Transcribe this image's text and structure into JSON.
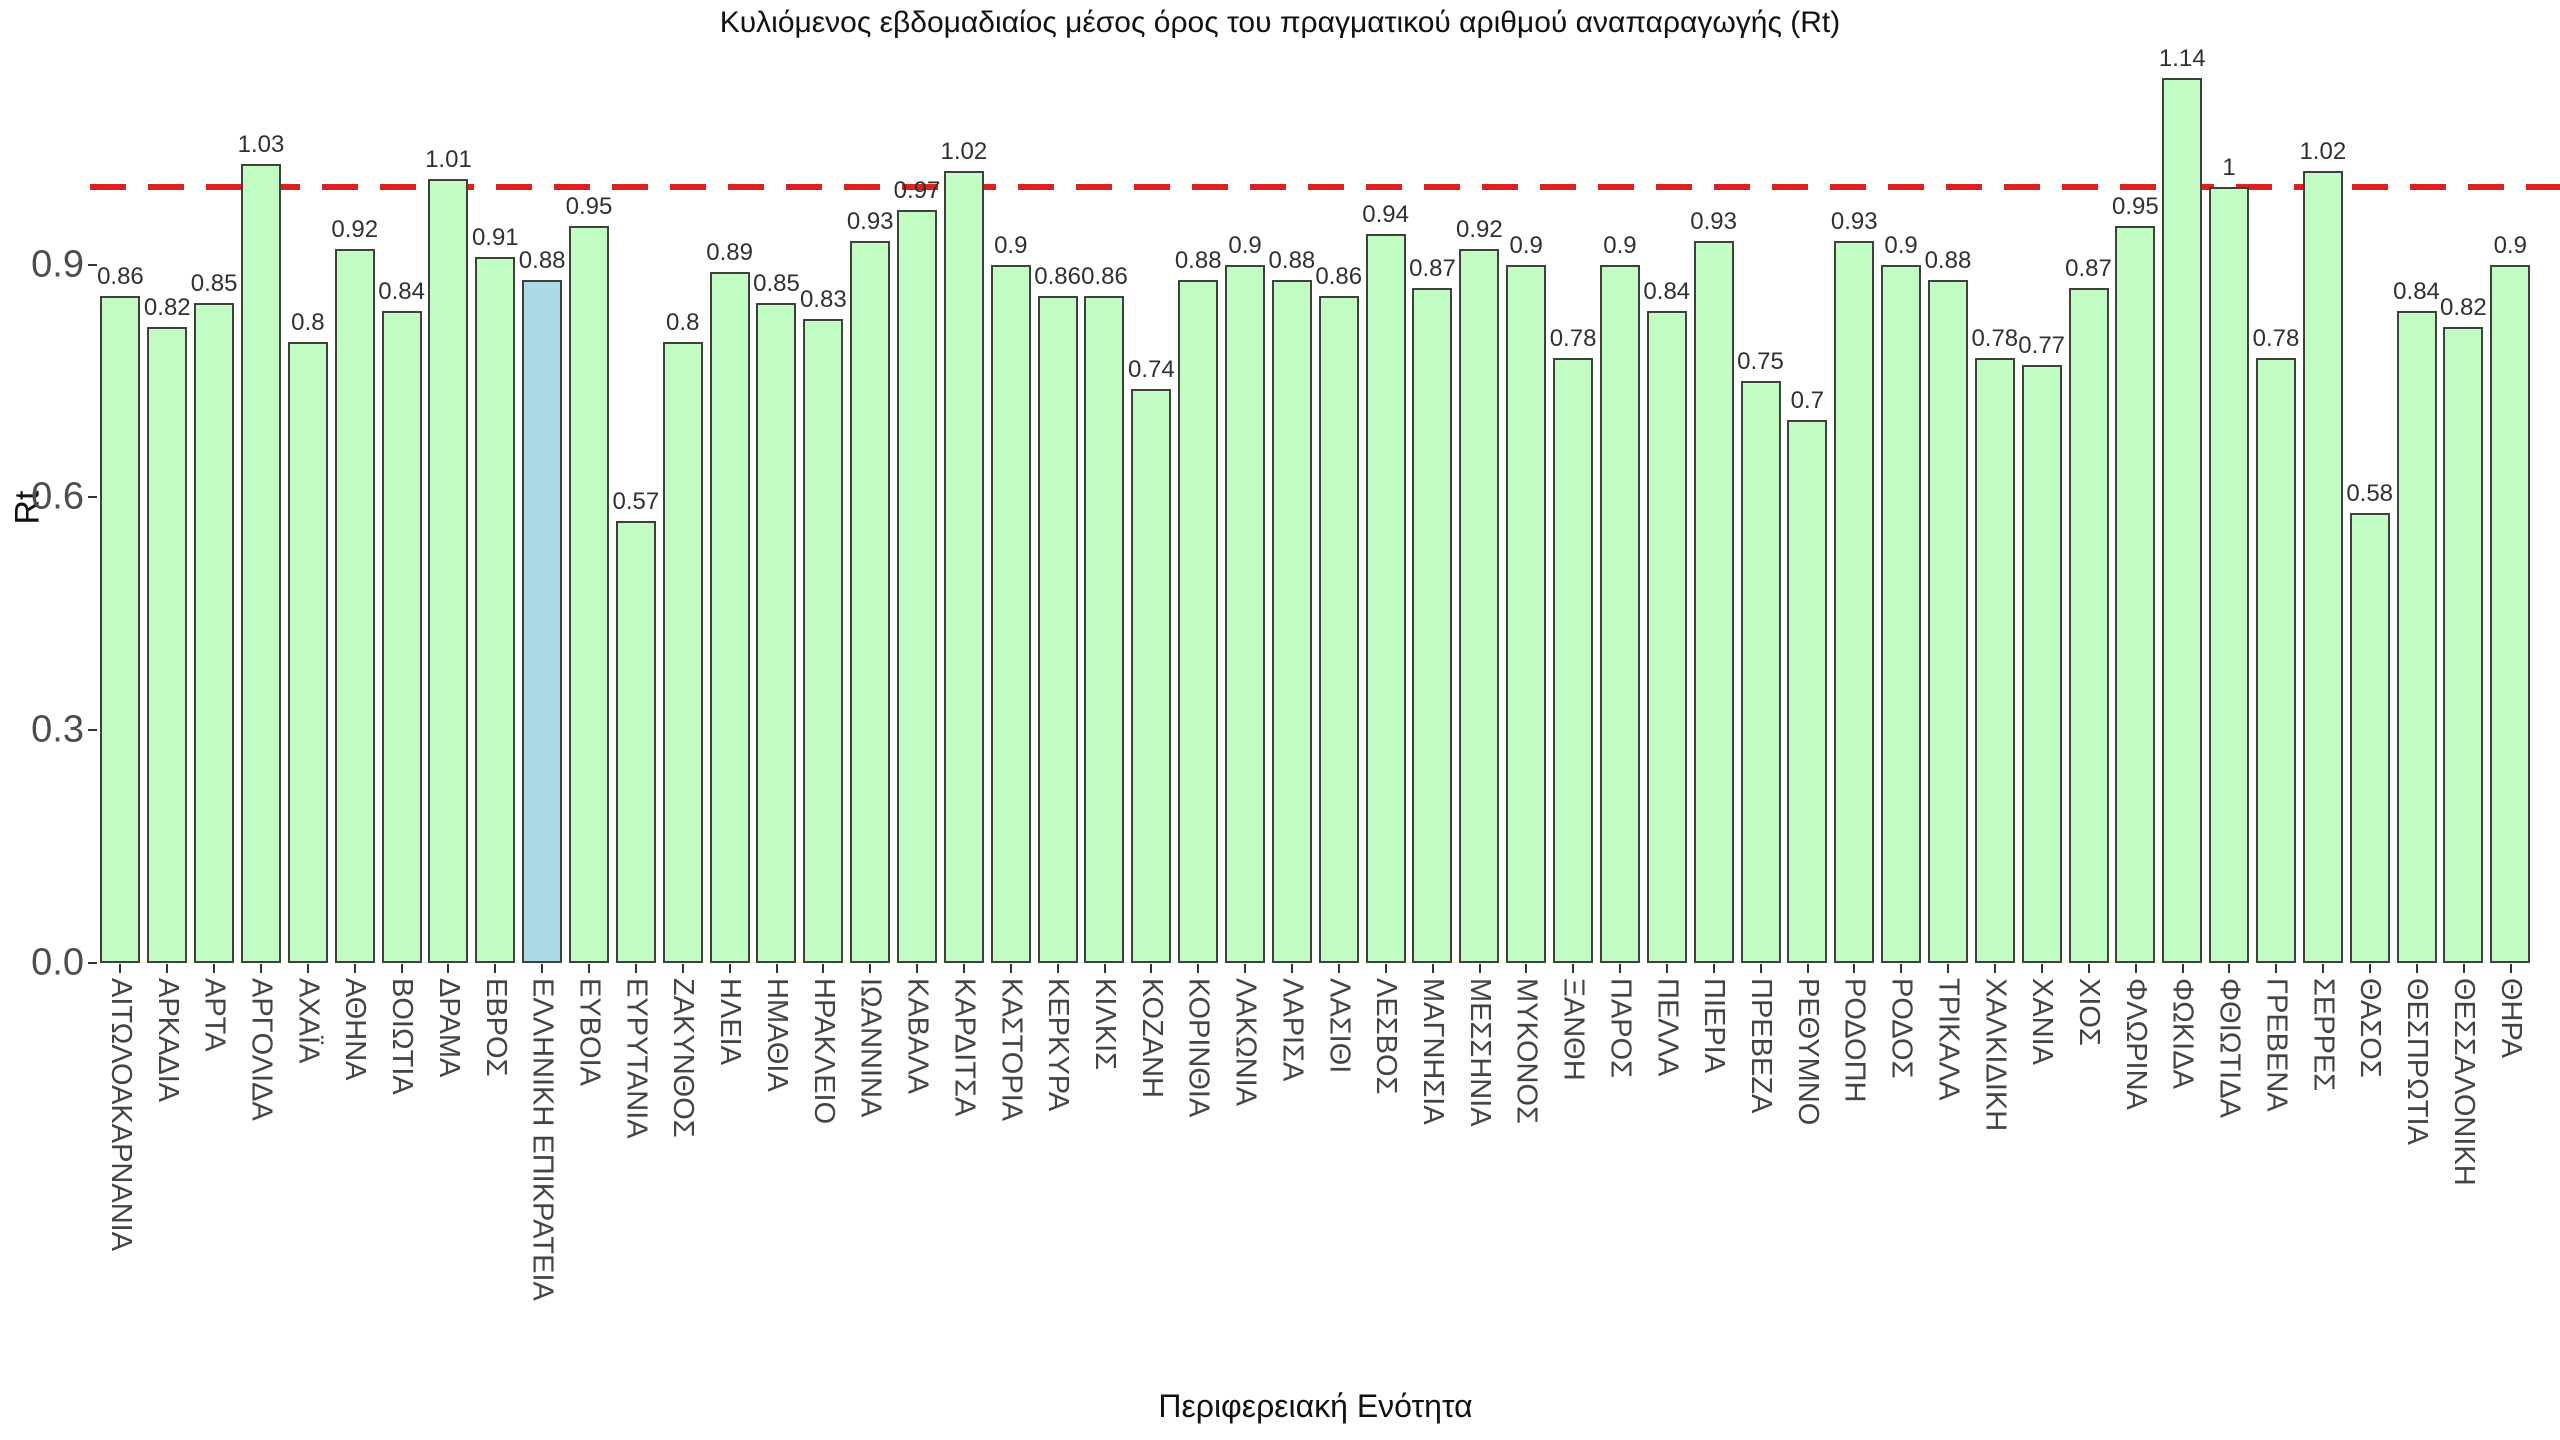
{
  "title": "Κυλιόμενος εβδομαδιαίος μέσος όρος του πραγματικού αριθμού αναπαραγωγής (Rt)",
  "y_axis": {
    "label": "Rt",
    "ticks": [
      "0.0",
      "0.3",
      "0.6",
      "0.9"
    ]
  },
  "x_axis": {
    "label": "Περιφερειακή Ενότητα"
  },
  "reference_line": {
    "value": 1.0,
    "color": "#e02020",
    "style": "dashed"
  },
  "colors": {
    "bar_fill": "#c2fcc3",
    "bar_highlight_fill": "#add8e6",
    "bar_border": "#404040",
    "tick_text": "#4d4d4d",
    "label_text": "#444444"
  },
  "highlight_category": "ΕΛΛΗΝΙΚΗ ΕΠΙΚΡΑΤΕΙΑ",
  "chart_data": {
    "type": "bar",
    "title": "Κυλιόμενος εβδομαδιαίος μέσος όρος του πραγματικού αριθμού αναπαραγωγής (Rt)",
    "xlabel": "Περιφερειακή Ενότητα",
    "ylabel": "Rt",
    "ylim": [
      0,
      1.2
    ],
    "yticks": [
      0.0,
      0.3,
      0.6,
      0.9
    ],
    "grid": false,
    "legend": false,
    "reference_line_y": 1.0,
    "highlight_index": 9,
    "categories": [
      "ΑΙΤΩΛΟΑΚΑΡΝΑΝΙΑ",
      "ΑΡΚΑΔΙΑ",
      "ΑΡΤΑ",
      "ΑΡΓΟΛΙΔΑ",
      "ΑΧΑΪΑ",
      "ΑΘΗΝΑ",
      "ΒΟΙΩΤΙΑ",
      "ΔΡΑΜΑ",
      "ΕΒΡΟΣ",
      "ΕΛΛΗΝΙΚΗ ΕΠΙΚΡΑΤΕΙΑ",
      "ΕΥΒΟΙΑ",
      "ΕΥΡΥΤΑΝΙΑ",
      "ΖΑΚΥΝΘΟΣ",
      "ΗΛΕΙΑ",
      "ΗΜΑΘΙΑ",
      "ΗΡΑΚΛΕΙΟ",
      "ΙΩΑΝΝΙΝΑ",
      "ΚΑΒΑΛΑ",
      "ΚΑΡΔΙΤΣΑ",
      "ΚΑΣΤΟΡΙΑ",
      "ΚΕΡΚΥΡΑ",
      "ΚΙΛΚΙΣ",
      "ΚΟΖΑΝΗ",
      "ΚΟΡΙΝΘΙΑ",
      "ΛΑΚΩΝΙΑ",
      "ΛΑΡΙΣΑ",
      "ΛΑΣΙΘΙ",
      "ΛΕΣΒΟΣ",
      "ΜΑΓΝΗΣΙΑ",
      "ΜΕΣΣΗΝΙΑ",
      "ΜΥΚΟΝΟΣ",
      "ΞΑΝΘΗ",
      "ΠΑΡΟΣ",
      "ΠΕΛΛΑ",
      "ΠΙΕΡΙΑ",
      "ΠΡΕΒΕΖΑ",
      "ΡΕΘΥΜΝΟ",
      "ΡΟΔΟΠΗ",
      "ΡΟΔΟΣ",
      "ΤΡΙΚΑΛΑ",
      "ΧΑΛΚΙΔΙΚΗ",
      "ΧΑΝΙΑ",
      "ΧΙΟΣ",
      "ΦΛΩΡΙΝΑ",
      "ΦΩΚΙΔΑ",
      "ΦΘΙΩΤΙΔΑ",
      "ΓΡΕΒΕΝΑ",
      "ΣΕΡΡΕΣ",
      "ΘΑΣΟΣ",
      "ΘΕΣΠΡΩΤΙΑ",
      "ΘΕΣΣΑΛΟΝΙΚΗ",
      "ΘΗΡΑ"
    ],
    "values": [
      0.86,
      0.82,
      0.85,
      1.03,
      0.8,
      0.92,
      0.84,
      1.01,
      0.91,
      0.88,
      0.95,
      0.57,
      0.8,
      0.89,
      0.85,
      0.83,
      0.93,
      0.97,
      1.02,
      0.9,
      0.86,
      0.86,
      0.74,
      0.88,
      0.9,
      0.88,
      0.86,
      0.94,
      0.87,
      0.92,
      0.9,
      0.78,
      0.9,
      0.84,
      0.93,
      0.75,
      0.7,
      0.93,
      0.9,
      0.88,
      0.78,
      0.77,
      0.87,
      0.95,
      1.14,
      1,
      0.78,
      1.02,
      0.58,
      0.84,
      0.82,
      0.9
    ]
  }
}
